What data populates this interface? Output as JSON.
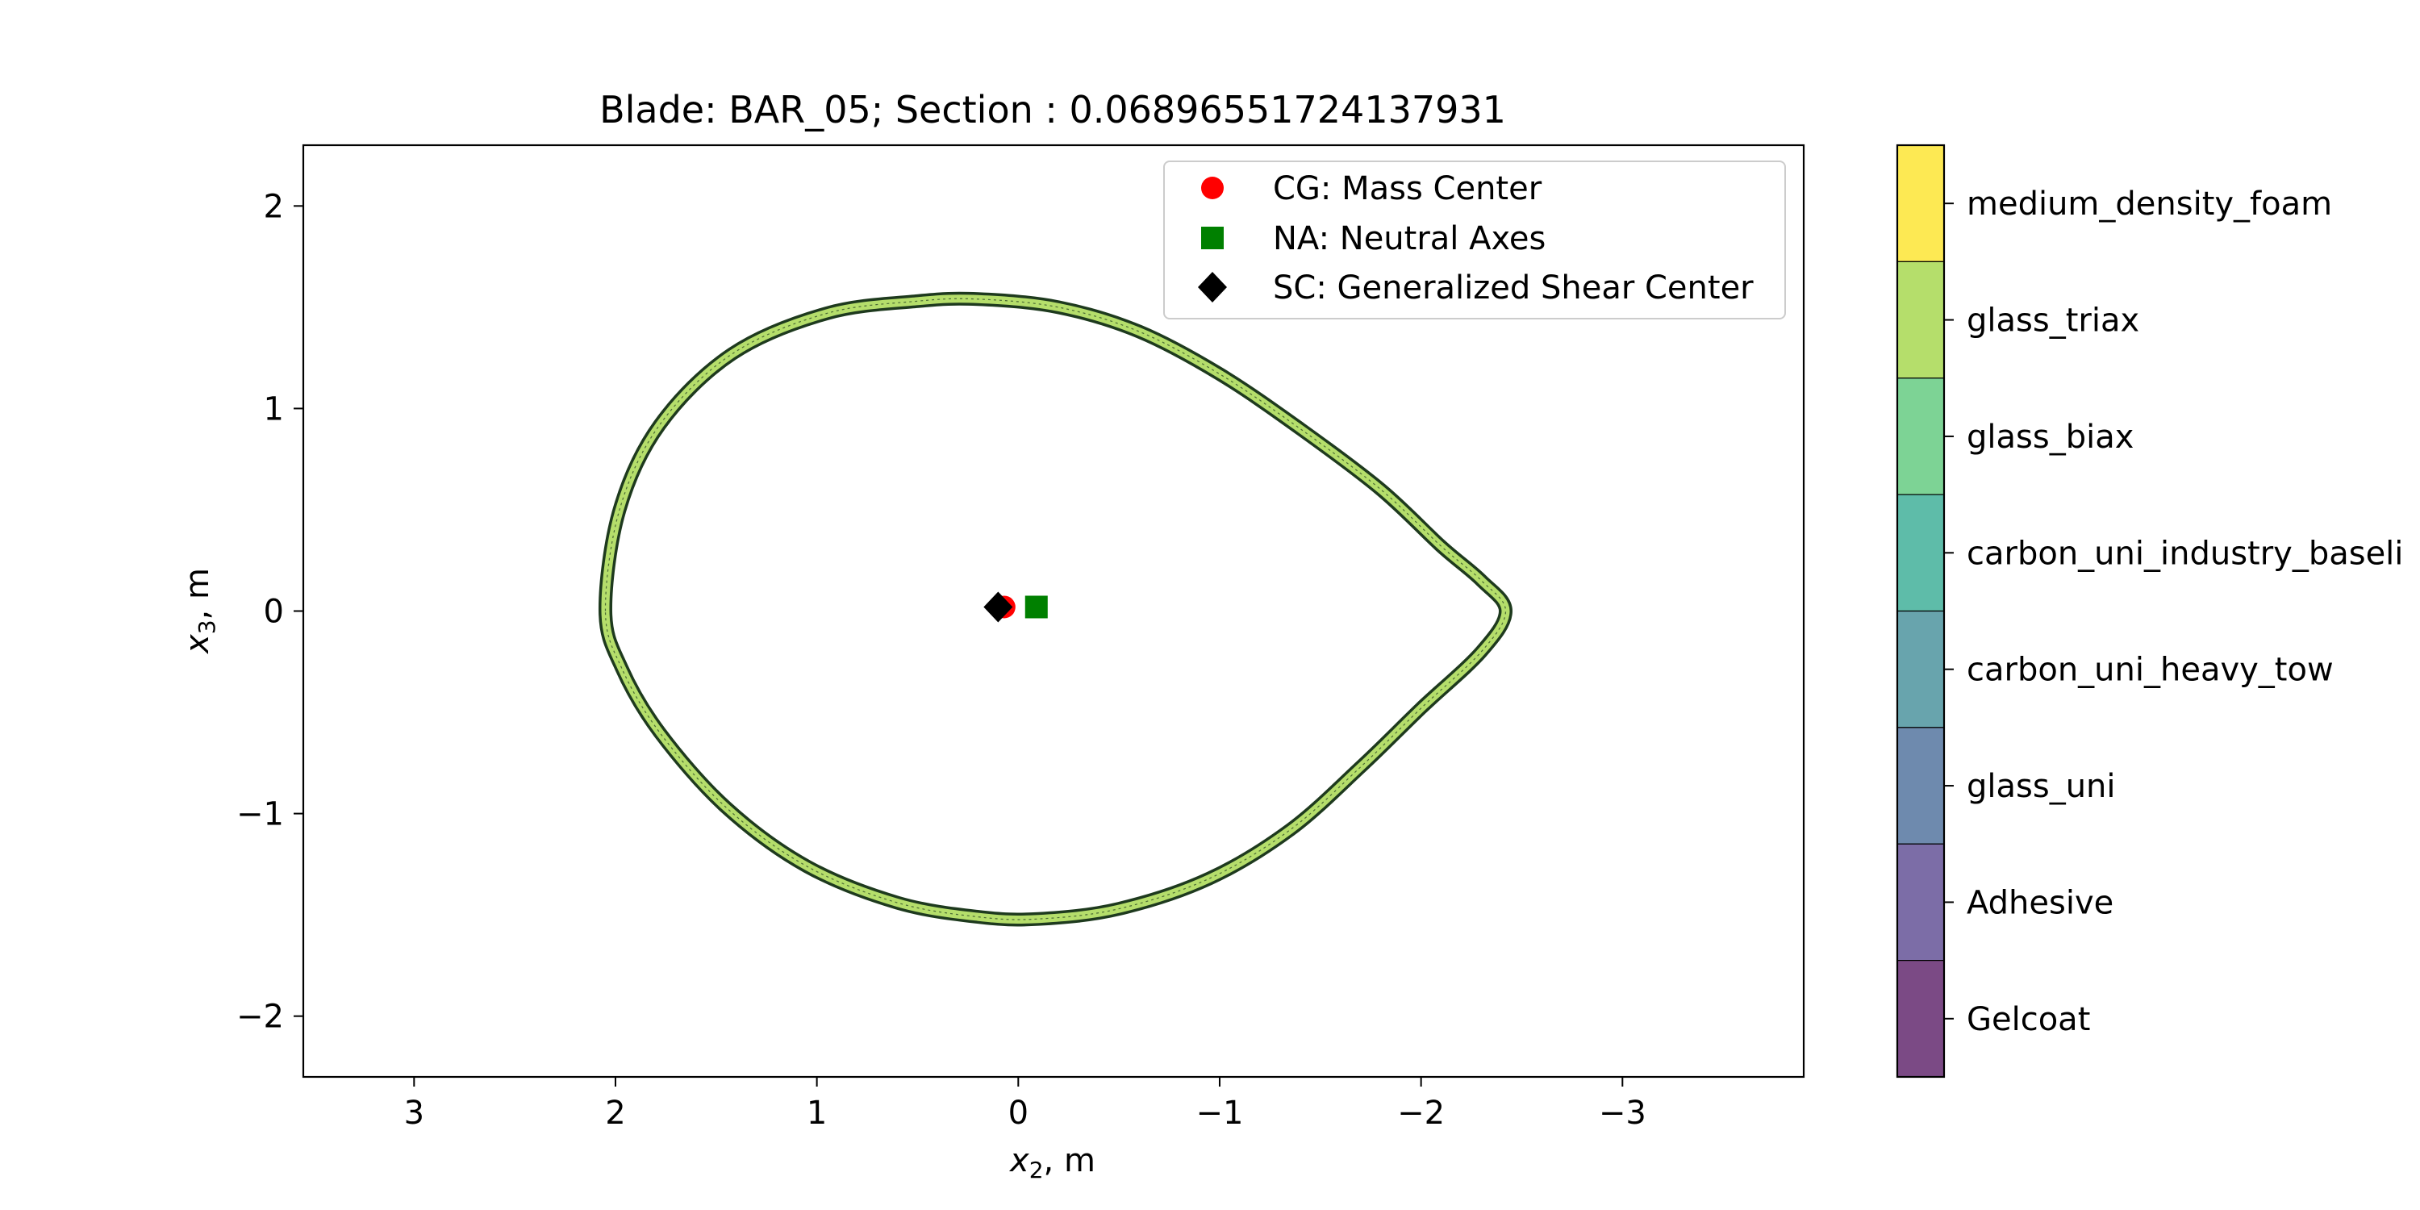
{
  "chart_data": {
    "type": "scatter",
    "title": "Blade: BAR_05; Section : 0.06896551724137931",
    "xlabel_main": "x",
    "xlabel_sub": "2",
    "xlabel_unit": ", m",
    "ylabel_main": "x",
    "ylabel_sub": "3",
    "ylabel_unit": ", m",
    "xlim": [
      3.55,
      -3.9
    ],
    "ylim": [
      -2.3,
      2.3
    ],
    "x_inverted": true,
    "xticks": [
      3,
      2,
      1,
      0,
      -1,
      -2,
      -3
    ],
    "xtick_labels": [
      "3",
      "2",
      "1",
      "0",
      "−1",
      "−2",
      "−3"
    ],
    "yticks": [
      2,
      1,
      0,
      -1,
      -2
    ],
    "ytick_labels": [
      "2",
      "1",
      "0",
      "−1",
      "−2"
    ],
    "grid": false,
    "legend_position": "upper-right",
    "section_outline": {
      "material": "glass_triax",
      "color": "#b5de6b",
      "edge_color": "#1e3a1e",
      "approx_points": [
        [
          2.05,
          0.0
        ],
        [
          1.98,
          0.5
        ],
        [
          1.78,
          0.92
        ],
        [
          1.42,
          1.27
        ],
        [
          0.95,
          1.47
        ],
        [
          0.5,
          1.53
        ],
        [
          0.2,
          1.54
        ],
        [
          -0.2,
          1.5
        ],
        [
          -0.6,
          1.38
        ],
        [
          -1.0,
          1.17
        ],
        [
          -1.4,
          0.9
        ],
        [
          -1.8,
          0.6
        ],
        [
          -2.1,
          0.32
        ],
        [
          -2.3,
          0.15
        ],
        [
          -2.42,
          0.0
        ],
        [
          -2.3,
          -0.2
        ],
        [
          -2.0,
          -0.48
        ],
        [
          -1.7,
          -0.77
        ],
        [
          -1.35,
          -1.08
        ],
        [
          -0.95,
          -1.32
        ],
        [
          -0.5,
          -1.47
        ],
        [
          -0.1,
          -1.52
        ],
        [
          0.2,
          -1.51
        ],
        [
          0.6,
          -1.44
        ],
        [
          1.05,
          -1.26
        ],
        [
          1.45,
          -0.97
        ],
        [
          1.78,
          -0.6
        ],
        [
          1.97,
          -0.28
        ],
        [
          2.05,
          0.0
        ]
      ]
    },
    "series": [
      {
        "name": "CG: Mass Center",
        "marker": "circle",
        "color": "#ff0000",
        "x": [
          0.07
        ],
        "y": [
          0.02
        ]
      },
      {
        "name": "NA: Neutral Axes",
        "marker": "square",
        "color": "#008000",
        "x": [
          -0.09
        ],
        "y": [
          0.02
        ]
      },
      {
        "name": "SC: Generalized Shear Center",
        "marker": "diamond",
        "color": "#000000",
        "x": [
          0.1
        ],
        "y": [
          0.02
        ]
      }
    ],
    "colorbar": {
      "categories": [
        {
          "label": "medium_density_foam",
          "color": "#fde953"
        },
        {
          "label": "glass_triax",
          "color": "#b5de6b"
        },
        {
          "label": "glass_biax",
          "color": "#7dd395"
        },
        {
          "label": "carbon_uni_industry_baseli",
          "color": "#5ebca9"
        },
        {
          "label": "carbon_uni_heavy_tow",
          "color": "#68a4ad"
        },
        {
          "label": "glass_uni",
          "color": "#6e8aae"
        },
        {
          "label": "Adhesive",
          "color": "#7c6da7"
        },
        {
          "label": "Gelcoat",
          "color": "#7b4a85"
        }
      ]
    }
  }
}
